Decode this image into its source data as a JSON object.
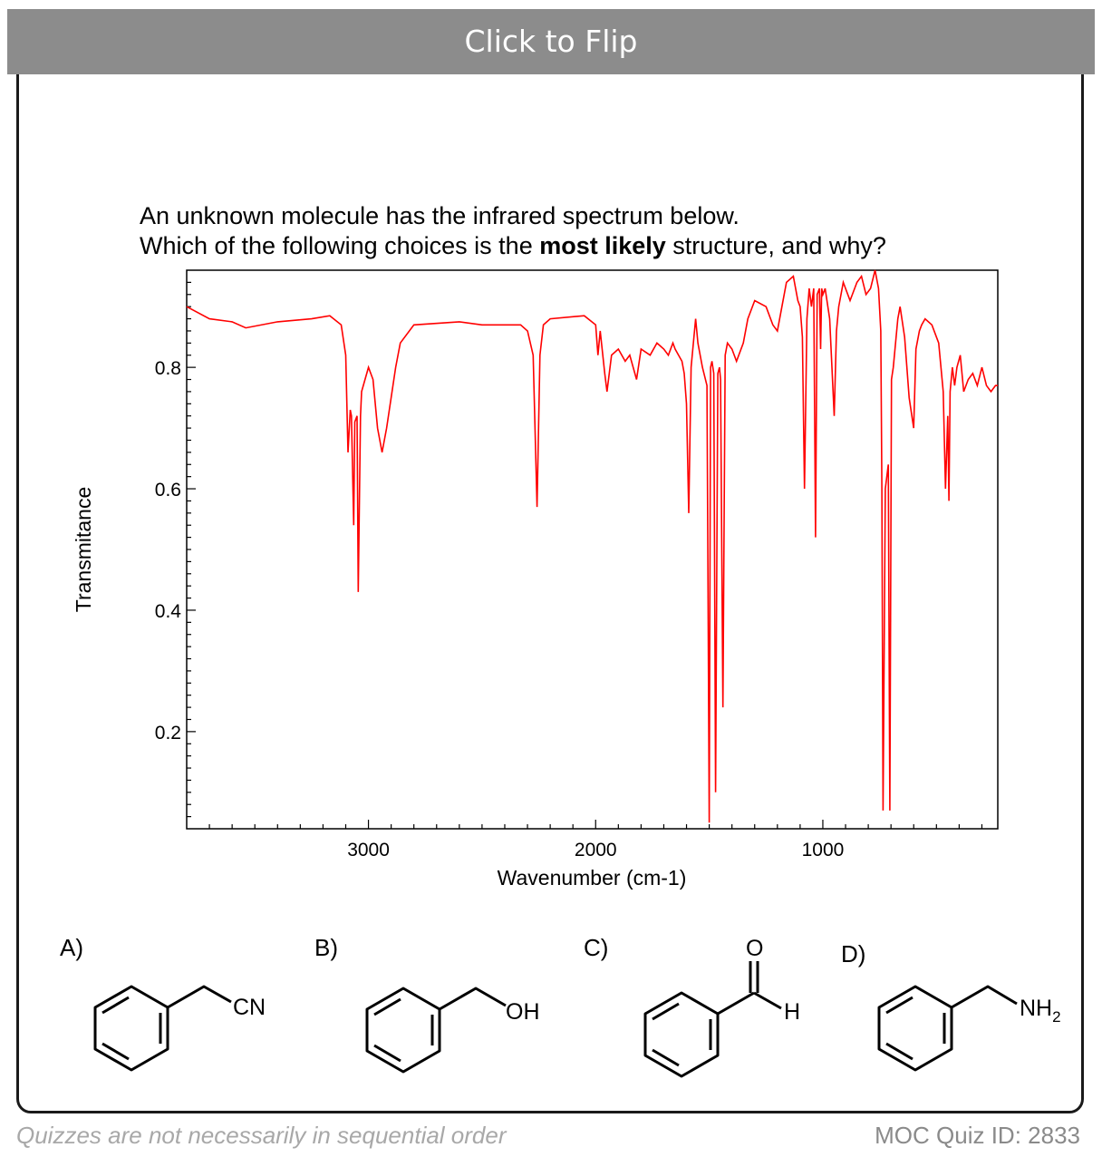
{
  "header": {
    "flip_label": "Click to Flip"
  },
  "question": {
    "line1": "An unknown molecule has the infrared spectrum below.",
    "line2_pre": "Which of the following choices is the ",
    "line2_bold": "most likely",
    "line2_post": " structure, and why?"
  },
  "chart_data": {
    "type": "line",
    "xlabel": "Wavenumber (cm-1)",
    "ylabel": "Transmitance",
    "xlim": [
      3800,
      230
    ],
    "ylim": [
      0.04,
      0.96
    ],
    "x_reversed": true,
    "xticks": [
      3000,
      2000,
      1000
    ],
    "yticks": [
      0.2,
      0.4,
      0.6,
      0.8
    ],
    "grid": false,
    "series": [
      {
        "color": "#ff0000",
        "x": [
          3800,
          3700,
          3600,
          3540,
          3400,
          3250,
          3170,
          3120,
          3100,
          3090,
          3080,
          3075,
          3065,
          3060,
          3050,
          3045,
          3035,
          3030,
          3000,
          2980,
          2960,
          2940,
          2920,
          2900,
          2880,
          2860,
          2800,
          2600,
          2500,
          2330,
          2300,
          2275,
          2258,
          2245,
          2230,
          2200,
          2050,
          2000,
          1990,
          1980,
          1960,
          1950,
          1930,
          1900,
          1870,
          1850,
          1820,
          1800,
          1760,
          1730,
          1700,
          1680,
          1660,
          1650,
          1620,
          1610,
          1600,
          1590,
          1580,
          1560,
          1550,
          1530,
          1510,
          1500,
          1494,
          1488,
          1480,
          1472,
          1462,
          1455,
          1450,
          1440,
          1430,
          1420,
          1400,
          1380,
          1350,
          1330,
          1300,
          1250,
          1220,
          1200,
          1180,
          1160,
          1130,
          1110,
          1100,
          1090,
          1081,
          1070,
          1060,
          1050,
          1040,
          1032,
          1025,
          1015,
          1010,
          1005,
          1000,
          990,
          970,
          950,
          940,
          930,
          910,
          880,
          850,
          830,
          810,
          790,
          770,
          755,
          745,
          740,
          735,
          725,
          712,
          705,
          698,
          690,
          670,
          660,
          640,
          620,
          600,
          590,
          575,
          565,
          550,
          520,
          500,
          490,
          480,
          470,
          460,
          450,
          445,
          440,
          430,
          420,
          410,
          395,
          380,
          360,
          340,
          320,
          300,
          280,
          260,
          240,
          230
        ],
        "y": [
          0.9,
          0.88,
          0.875,
          0.865,
          0.875,
          0.88,
          0.885,
          0.87,
          0.82,
          0.66,
          0.73,
          0.72,
          0.54,
          0.71,
          0.72,
          0.43,
          0.72,
          0.76,
          0.8,
          0.78,
          0.7,
          0.66,
          0.7,
          0.75,
          0.8,
          0.84,
          0.87,
          0.875,
          0.87,
          0.87,
          0.86,
          0.82,
          0.57,
          0.82,
          0.87,
          0.88,
          0.885,
          0.87,
          0.82,
          0.86,
          0.79,
          0.76,
          0.82,
          0.83,
          0.81,
          0.82,
          0.78,
          0.83,
          0.82,
          0.84,
          0.83,
          0.82,
          0.84,
          0.83,
          0.81,
          0.79,
          0.74,
          0.56,
          0.8,
          0.88,
          0.84,
          0.8,
          0.77,
          0.05,
          0.8,
          0.81,
          0.79,
          0.1,
          0.79,
          0.8,
          0.78,
          0.24,
          0.82,
          0.84,
          0.83,
          0.81,
          0.84,
          0.88,
          0.91,
          0.9,
          0.87,
          0.86,
          0.9,
          0.94,
          0.95,
          0.91,
          0.9,
          0.85,
          0.6,
          0.88,
          0.93,
          0.9,
          0.93,
          0.52,
          0.92,
          0.93,
          0.83,
          0.93,
          0.92,
          0.93,
          0.88,
          0.72,
          0.86,
          0.9,
          0.94,
          0.91,
          0.94,
          0.95,
          0.92,
          0.93,
          0.96,
          0.93,
          0.86,
          0.6,
          0.07,
          0.6,
          0.64,
          0.07,
          0.78,
          0.8,
          0.88,
          0.9,
          0.85,
          0.75,
          0.7,
          0.83,
          0.86,
          0.87,
          0.88,
          0.87,
          0.85,
          0.84,
          0.8,
          0.76,
          0.6,
          0.72,
          0.58,
          0.76,
          0.8,
          0.77,
          0.8,
          0.82,
          0.76,
          0.78,
          0.79,
          0.77,
          0.8,
          0.77,
          0.76,
          0.77,
          0.77
        ]
      }
    ]
  },
  "choices": [
    {
      "letter": "A)",
      "group": "CN"
    },
    {
      "letter": "B)",
      "group": "OH"
    },
    {
      "letter": "C)",
      "atom_o": "O",
      "atom_h": "H"
    },
    {
      "letter": "D)",
      "group_main": "NH",
      "group_sub": "2"
    }
  ],
  "footer": {
    "note": "Quizzes are not necessarily in sequential order",
    "quiz_id": "MOC Quiz ID: 2833"
  }
}
